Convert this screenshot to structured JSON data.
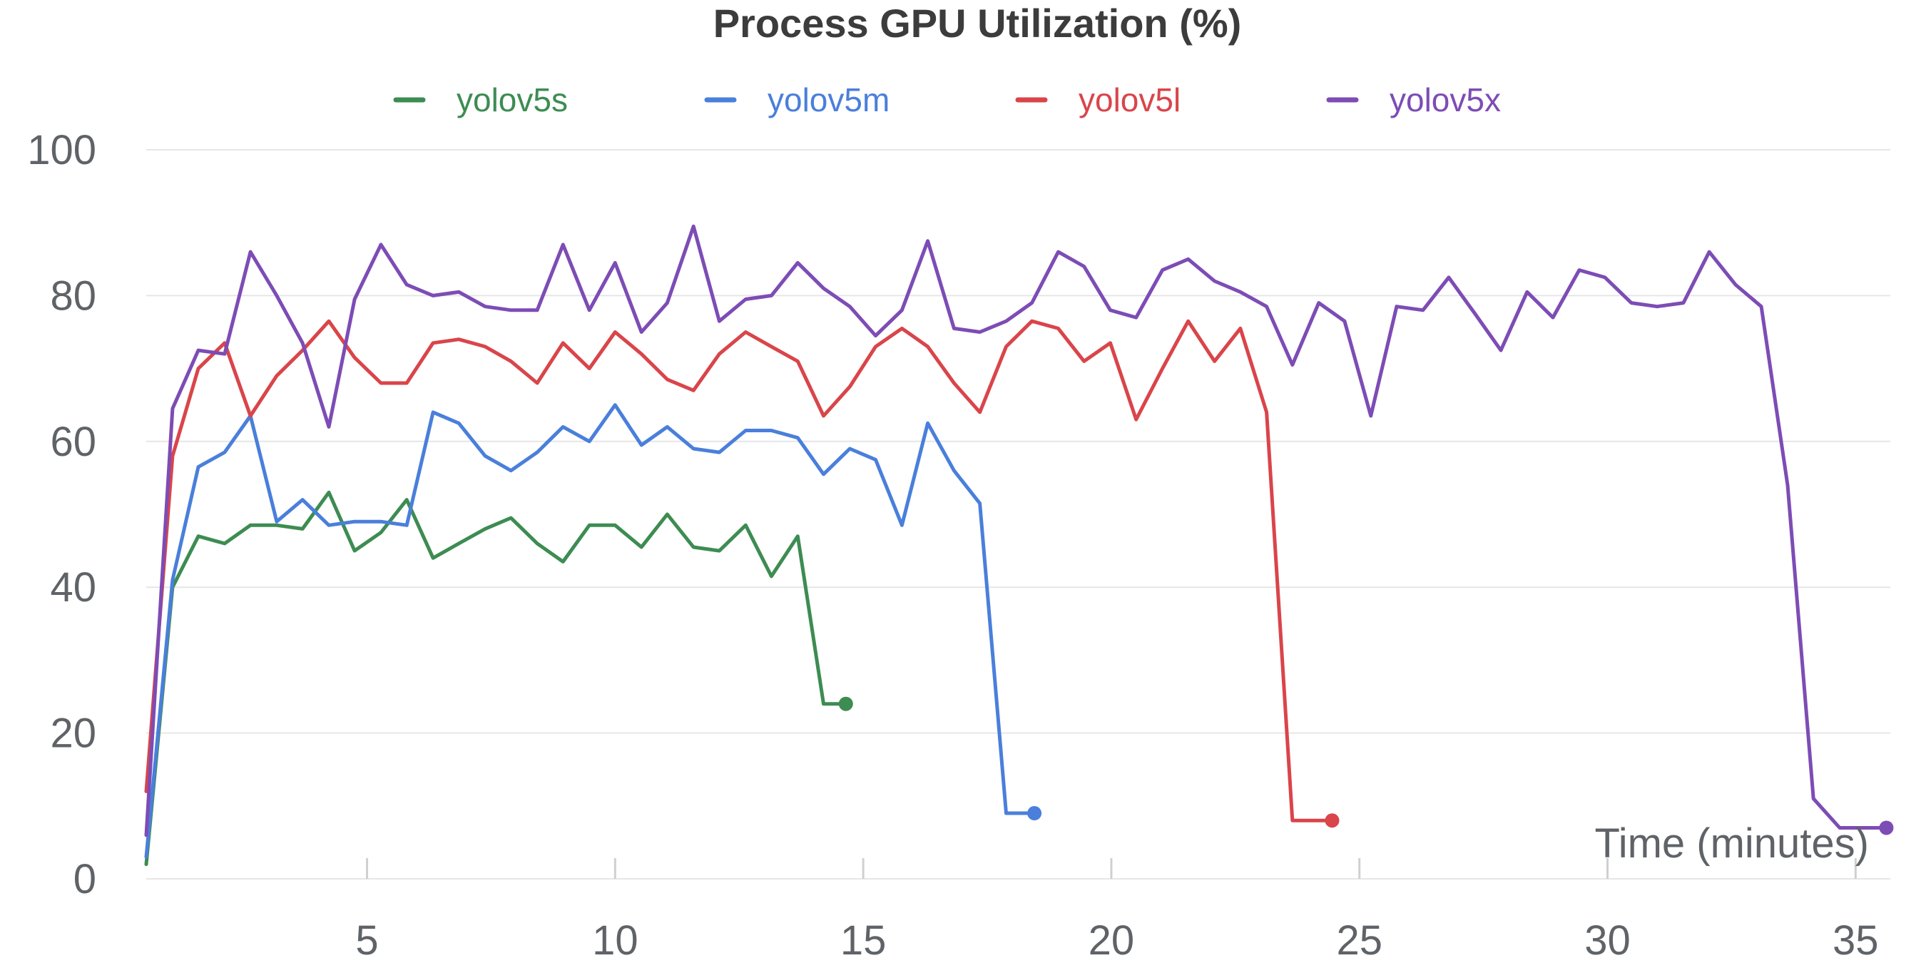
{
  "chart_data": {
    "type": "line",
    "title": "Process GPU Utilization (%)",
    "xlabel": "Time (minutes)",
    "ylabel": "",
    "xlim": [
      0.55,
      35.7
    ],
    "ylim": [
      0,
      100
    ],
    "xticks": [
      5,
      10,
      15,
      20,
      25,
      30,
      35
    ],
    "yticks": [
      0,
      20,
      40,
      60,
      80,
      100
    ],
    "grid": true,
    "legend_position": "top-center",
    "series": [
      {
        "name": "yolov5s",
        "color": "#3d8c52",
        "x": [
          0.55,
          1.08,
          1.6,
          2.13,
          2.65,
          3.18,
          3.7,
          4.23,
          4.75,
          5.28,
          5.8,
          6.33,
          6.85,
          7.38,
          7.9,
          8.43,
          8.95,
          9.48,
          10.0,
          10.53,
          11.05,
          11.58,
          12.1,
          12.63,
          13.15,
          13.68,
          14.2,
          14.65
        ],
        "y": [
          2,
          40,
          47,
          46,
          48.5,
          48.5,
          48,
          53,
          45,
          47.5,
          52,
          44,
          46,
          48,
          49.5,
          46,
          43.5,
          48.5,
          48.5,
          45.5,
          50,
          45.5,
          45,
          48.5,
          41.5,
          47,
          24,
          24
        ]
      },
      {
        "name": "yolov5m",
        "color": "#4a7fdb",
        "x": [
          0.55,
          1.08,
          1.6,
          2.13,
          2.65,
          3.18,
          3.7,
          4.23,
          4.75,
          5.28,
          5.8,
          6.33,
          6.85,
          7.38,
          7.9,
          8.43,
          8.95,
          9.48,
          10.0,
          10.53,
          11.05,
          11.58,
          12.1,
          12.63,
          13.15,
          13.68,
          14.2,
          14.73,
          15.25,
          15.78,
          16.3,
          16.83,
          17.35,
          17.88,
          18.45
        ],
        "y": [
          3,
          41,
          56.5,
          58.5,
          63.5,
          49,
          52,
          48.5,
          49,
          49,
          48.5,
          64,
          62.5,
          58,
          56,
          58.5,
          62,
          60,
          65,
          59.5,
          62,
          59,
          58.5,
          61.5,
          61.5,
          60.5,
          55.5,
          59,
          57.5,
          48.5,
          62.5,
          56,
          51.5,
          9,
          9
        ]
      },
      {
        "name": "yolov5l",
        "color": "#d9454a",
        "x": [
          0.55,
          1.08,
          1.6,
          2.13,
          2.65,
          3.18,
          3.7,
          4.23,
          4.75,
          5.28,
          5.8,
          6.33,
          6.85,
          7.38,
          7.9,
          8.43,
          8.95,
          9.48,
          10.0,
          10.53,
          11.05,
          11.58,
          12.1,
          12.63,
          13.15,
          13.68,
          14.2,
          14.73,
          15.25,
          15.78,
          16.3,
          16.83,
          17.35,
          17.88,
          18.4,
          18.93,
          19.45,
          19.98,
          20.5,
          21.03,
          21.55,
          22.08,
          22.6,
          23.13,
          23.65,
          24.18,
          24.45
        ],
        "y": [
          12,
          58,
          70,
          73.5,
          63.5,
          69,
          72.5,
          76.5,
          71.5,
          68,
          68,
          73.5,
          74,
          73,
          71,
          68,
          73.5,
          70,
          75,
          72,
          68.5,
          67,
          72,
          75,
          73,
          71,
          63.5,
          67.5,
          73,
          75.5,
          73,
          68,
          64,
          73,
          76.5,
          75.5,
          71,
          73.5,
          63,
          70,
          76.5,
          71,
          75.5,
          64,
          8,
          8,
          8
        ]
      },
      {
        "name": "yolov5x",
        "color": "#7d4cb5",
        "x": [
          0.55,
          1.08,
          1.6,
          2.13,
          2.65,
          3.18,
          3.7,
          4.23,
          4.75,
          5.28,
          5.8,
          6.33,
          6.85,
          7.38,
          7.9,
          8.43,
          8.95,
          9.48,
          10.0,
          10.53,
          11.05,
          11.58,
          12.1,
          12.63,
          13.15,
          13.68,
          14.2,
          14.73,
          15.25,
          15.78,
          16.3,
          16.83,
          17.35,
          17.88,
          18.4,
          18.93,
          19.45,
          19.98,
          20.5,
          21.03,
          21.55,
          22.08,
          22.6,
          23.13,
          23.65,
          24.18,
          24.7,
          25.23,
          25.75,
          26.28,
          26.8,
          27.33,
          27.85,
          28.38,
          28.9,
          29.43,
          29.95,
          30.48,
          31.0,
          31.53,
          32.05,
          32.58,
          33.1,
          33.63,
          34.15,
          34.68,
          35.2,
          35.55,
          35.62
        ],
        "y": [
          6,
          64.5,
          72.5,
          72,
          86,
          80,
          73.5,
          62,
          79.5,
          87,
          81.5,
          80,
          80.5,
          78.5,
          78,
          78,
          87,
          78,
          84.5,
          75,
          79,
          89.5,
          76.5,
          79.5,
          80,
          84.5,
          81,
          78.5,
          74.5,
          78,
          87.5,
          75.5,
          75,
          76.5,
          79,
          86,
          84,
          78,
          77,
          83.5,
          85,
          82,
          80.5,
          78.5,
          70.5,
          79,
          76.5,
          63.5,
          78.5,
          78,
          82.5,
          77.5,
          72.5,
          80.5,
          77,
          83.5,
          82.5,
          79,
          78.5,
          79,
          86,
          81.5,
          78.5,
          54,
          11,
          7,
          7,
          7,
          7
        ]
      }
    ]
  }
}
